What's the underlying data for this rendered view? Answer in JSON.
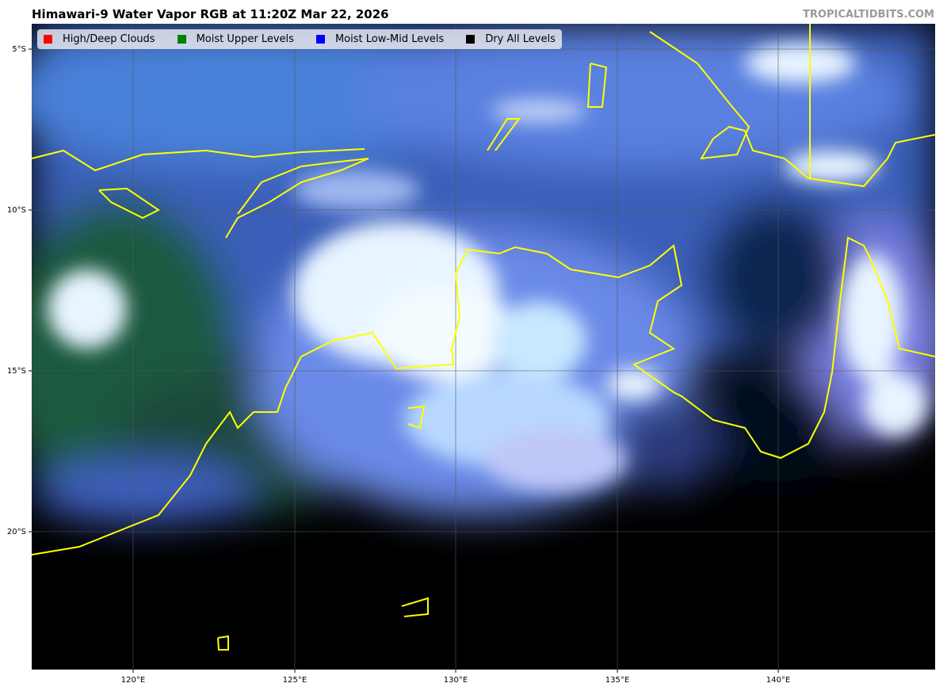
{
  "title": "Himawari-9 Water Vapor RGB at 11:20Z Mar 22, 2026",
  "credit": "TROPICALTIDBITS.COM",
  "legend": [
    {
      "label": "High/Deep Clouds",
      "color": "#ff0000"
    },
    {
      "label": "Moist Upper Levels",
      "color": "#008000"
    },
    {
      "label": "Moist Low-Mid Levels",
      "color": "#0000ff"
    },
    {
      "label": "Dry All Levels",
      "color": "#000000"
    }
  ],
  "axes": {
    "lat_ticks": [
      "5°S",
      "10°S",
      "15°S",
      "20°S"
    ],
    "lon_ticks": [
      "120°E",
      "125°E",
      "130°E",
      "135°E",
      "140°E"
    ]
  },
  "colors": {
    "coastline": "#ffff00",
    "gridline": "#444444"
  }
}
